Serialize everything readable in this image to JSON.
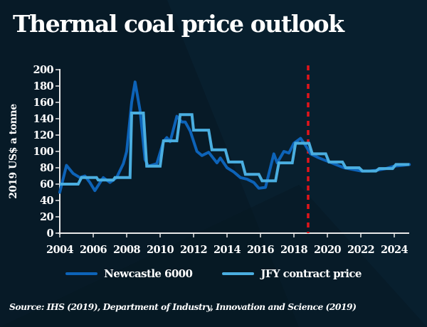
{
  "title": "Thermal coal price outlook",
  "source": "Source: IHS (2019), Department of Industry, Innovation and Science (2019)",
  "colors": {
    "background": "#071a27",
    "newcastle": "#0d63b8",
    "jfy": "#4aaee0",
    "forecast_marker": "#e3141b",
    "axis": "#e8e8e8",
    "text": "#ffffff"
  },
  "legend": {
    "items": [
      {
        "label": "Newcastle 6000",
        "series": "newcastle"
      },
      {
        "label": "JFY contract price",
        "series": "jfy"
      }
    ]
  },
  "chart_data": {
    "type": "line",
    "title": "Thermal coal price outlook",
    "xlabel": "",
    "ylabel": "2019 US$ a tonne",
    "xlim": [
      2004,
      2024.9
    ],
    "ylim": [
      0,
      200
    ],
    "x_ticks": [
      2004,
      2006,
      2008,
      2010,
      2012,
      2014,
      2016,
      2018,
      2020,
      2022,
      2024
    ],
    "y_ticks": [
      0,
      20,
      40,
      60,
      80,
      100,
      120,
      140,
      160,
      180,
      200
    ],
    "grid": false,
    "legend_position": "bottom",
    "forecast_marker_x": 2018.85,
    "series": [
      {
        "name": "Newcastle 6000",
        "key": "newcastle",
        "x": [
          2004.0,
          2004.4,
          2004.8,
          2005.2,
          2005.5,
          2005.8,
          2006.1,
          2006.6,
          2007.0,
          2007.4,
          2007.8,
          2008.0,
          2008.3,
          2008.5,
          2008.8,
          2009.1,
          2009.3,
          2009.8,
          2010.2,
          2010.4,
          2010.6,
          2011.0,
          2011.3,
          2011.5,
          2011.8,
          2012.2,
          2012.5,
          2012.9,
          2013.4,
          2013.6,
          2014.0,
          2014.4,
          2014.8,
          2015.2,
          2015.6,
          2015.9,
          2016.3,
          2016.8,
          2017.0,
          2017.4,
          2017.7,
          2018.0,
          2018.4,
          2018.7,
          2019.0,
          2019.5,
          2020.0,
          2020.5,
          2021.0,
          2021.5,
          2022.0,
          2022.5,
          2023.0,
          2023.5,
          2024.0,
          2024.5,
          2024.9
        ],
        "values": [
          50,
          83,
          73,
          68,
          70,
          62,
          52,
          68,
          62,
          68,
          85,
          100,
          160,
          185,
          150,
          90,
          82,
          85,
          112,
          117,
          112,
          143,
          136,
          136,
          125,
          100,
          95,
          99,
          86,
          92,
          80,
          75,
          68,
          66,
          62,
          55,
          56,
          97,
          86,
          100,
          98,
          110,
          116,
          107,
          97,
          92,
          88,
          84,
          80,
          78,
          76,
          76,
          77,
          79,
          82,
          83,
          84
        ]
      },
      {
        "name": "JFY contract price",
        "key": "jfy",
        "x": [
          2004.0,
          2005.1,
          2005.3,
          2006.2,
          2006.3,
          2007.2,
          2007.3,
          2008.2,
          2008.3,
          2009.0,
          2009.2,
          2010.0,
          2010.2,
          2011.0,
          2011.2,
          2011.9,
          2012.0,
          2012.9,
          2013.1,
          2013.9,
          2014.1,
          2014.9,
          2015.1,
          2015.9,
          2016.1,
          2016.9,
          2017.1,
          2017.9,
          2018.1,
          2018.9,
          2019.1,
          2019.9,
          2020.1,
          2020.9,
          2021.1,
          2021.9,
          2022.1,
          2022.9,
          2023.1,
          2023.9,
          2024.1,
          2024.9
        ],
        "values": [
          60,
          60,
          68,
          68,
          65,
          65,
          68,
          68,
          147,
          147,
          82,
          82,
          113,
          113,
          145,
          145,
          126,
          126,
          102,
          102,
          87,
          87,
          72,
          72,
          64,
          64,
          86,
          86,
          110,
          110,
          97,
          97,
          87,
          87,
          80,
          80,
          76,
          76,
          79,
          79,
          84,
          84
        ]
      }
    ]
  }
}
